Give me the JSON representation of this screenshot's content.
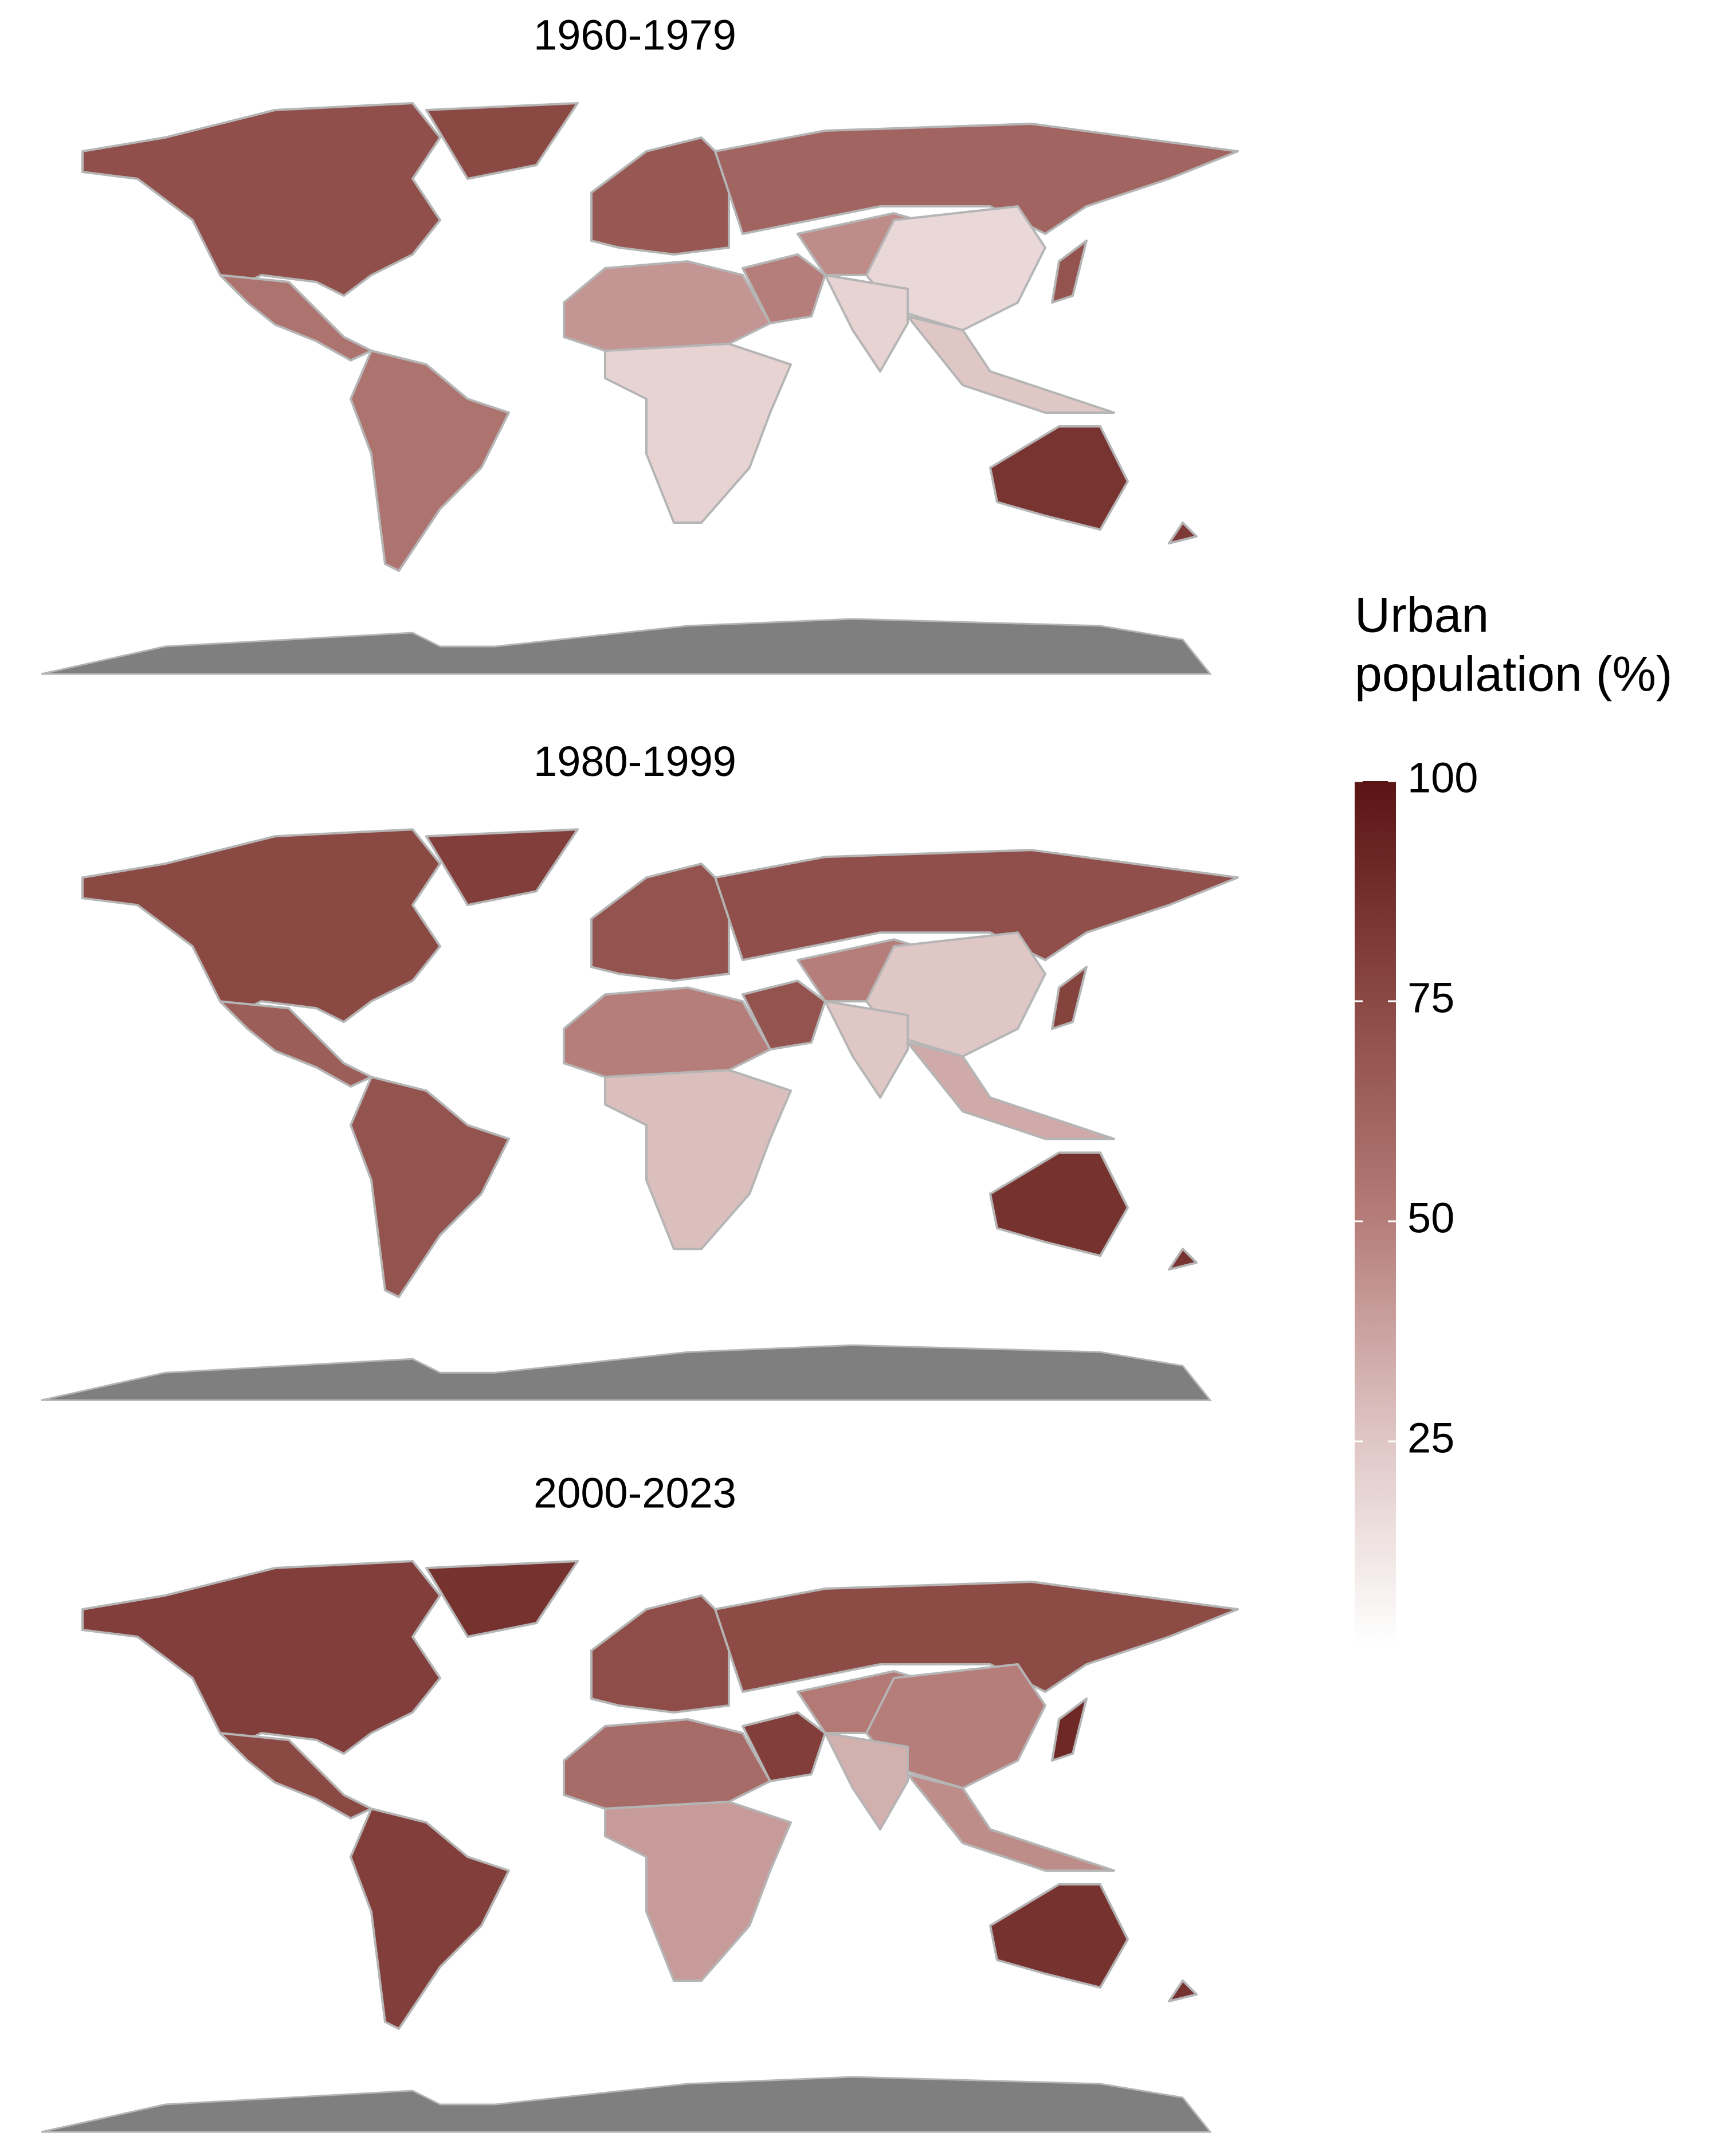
{
  "chart_data": {
    "type": "choropleth",
    "panels": [
      {
        "title": "1960-1979",
        "values": [
          72,
          75,
          55,
          55,
          68,
          62,
          42,
          20,
          50,
          45,
          18,
          20,
          25,
          70,
          85,
          82
        ]
      },
      {
        "title": "1980-1999",
        "values": [
          75,
          80,
          65,
          70,
          70,
          72,
          50,
          28,
          70,
          50,
          25,
          25,
          35,
          78,
          86,
          85
        ]
      },
      {
        "title": "2000-2023",
        "values": [
          80,
          86,
          75,
          80,
          73,
          74,
          58,
          40,
          80,
          52,
          50,
          33,
          45,
          90,
          86,
          86
        ]
      }
    ],
    "legend_title": [
      "Urban",
      "population (%)"
    ],
    "clim": [
      2,
      100
    ],
    "cticks": [
      25,
      50,
      75,
      100
    ],
    "colors": [
      "#ffffff",
      "#ddc3c2",
      "#b47b77",
      "#8a4843",
      "#5a1414"
    ],
    "missing_color": "#7f7f7f"
  }
}
